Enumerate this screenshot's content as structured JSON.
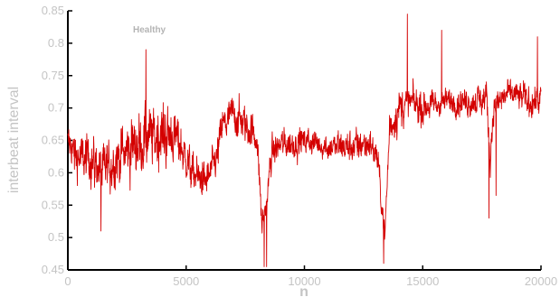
{
  "chart_data": {
    "type": "line",
    "annotation": "Healthy",
    "xlabel": "n",
    "ylabel": "interbeat interval",
    "xlim": [
      0,
      20000
    ],
    "ylim": [
      0.45,
      0.85
    ],
    "x_ticks": [
      0,
      5000,
      10000,
      15000,
      20000
    ],
    "x_tick_labels": [
      "0",
      "5000",
      "10000",
      "15000",
      "20000"
    ],
    "y_ticks": [
      0.45,
      0.5,
      0.55,
      0.6,
      0.65,
      0.7,
      0.75,
      0.8,
      0.85
    ],
    "y_tick_labels": [
      "0.45",
      "0.5",
      "0.55",
      "0.6",
      "0.65",
      "0.7",
      "0.75",
      "0.8",
      "0.85"
    ],
    "grid": false,
    "line_color": "#d40000",
    "series": [
      {
        "name": "",
        "baseline": [
          [
            0,
            0.645
          ],
          [
            400,
            0.625
          ],
          [
            1000,
            0.62
          ],
          [
            1500,
            0.6
          ],
          [
            2000,
            0.62
          ],
          [
            2700,
            0.64
          ],
          [
            3300,
            0.65
          ],
          [
            4000,
            0.66
          ],
          [
            4600,
            0.655
          ],
          [
            5000,
            0.62
          ],
          [
            5300,
            0.6
          ],
          [
            5800,
            0.585
          ],
          [
            6300,
            0.62
          ],
          [
            6500,
            0.67
          ],
          [
            7000,
            0.69
          ],
          [
            7600,
            0.67
          ],
          [
            8000,
            0.655
          ],
          [
            8200,
            0.52
          ],
          [
            8400,
            0.55
          ],
          [
            8600,
            0.63
          ],
          [
            9000,
            0.645
          ],
          [
            9500,
            0.645
          ],
          [
            10000,
            0.65
          ],
          [
            11000,
            0.64
          ],
          [
            12000,
            0.64
          ],
          [
            12800,
            0.645
          ],
          [
            13100,
            0.62
          ],
          [
            13400,
            0.5
          ],
          [
            13600,
            0.67
          ],
          [
            14000,
            0.7
          ],
          [
            14500,
            0.71
          ],
          [
            15000,
            0.7
          ],
          [
            16000,
            0.71
          ],
          [
            17000,
            0.71
          ],
          [
            17700,
            0.715
          ],
          [
            17850,
            0.62
          ],
          [
            18000,
            0.7
          ],
          [
            18500,
            0.72
          ],
          [
            19000,
            0.72
          ],
          [
            19500,
            0.71
          ],
          [
            20000,
            0.715
          ]
        ],
        "amplitude": [
          [
            0,
            0.03
          ],
          [
            1000,
            0.035
          ],
          [
            2500,
            0.045
          ],
          [
            4000,
            0.045
          ],
          [
            5000,
            0.03
          ],
          [
            6000,
            0.025
          ],
          [
            7000,
            0.03
          ],
          [
            8000,
            0.025
          ],
          [
            9000,
            0.022
          ],
          [
            11000,
            0.02
          ],
          [
            12500,
            0.025
          ],
          [
            13300,
            0.02
          ],
          [
            14000,
            0.03
          ],
          [
            15000,
            0.025
          ],
          [
            16000,
            0.02
          ],
          [
            18000,
            0.022
          ],
          [
            20000,
            0.022
          ]
        ],
        "dips": [
          [
            1400,
            0.51
          ],
          [
            3300,
            0.79
          ],
          [
            8300,
            0.455
          ],
          [
            8400,
            0.455
          ],
          [
            13350,
            0.46
          ],
          [
            14350,
            0.845
          ],
          [
            15800,
            0.82
          ],
          [
            17800,
            0.53
          ],
          [
            18100,
            0.565
          ],
          [
            19850,
            0.81
          ]
        ]
      }
    ]
  }
}
